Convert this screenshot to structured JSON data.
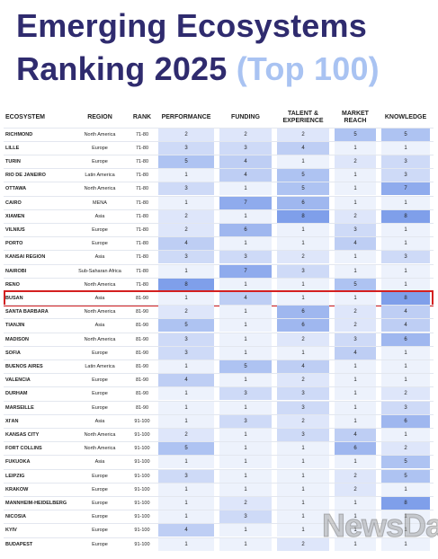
{
  "header": {
    "title_line1": "Emerging Ecosystems",
    "title_line2": "Ranking 2025",
    "title_tag": "(Top 100)"
  },
  "table": {
    "columns": [
      "ECOSYSTEM",
      "REGION",
      "RANK",
      "PERFORMANCE",
      "FUNDING",
      "TALENT & EXPERIENCE",
      "MARKET REACH",
      "KNOWLEDGE"
    ],
    "rows": [
      [
        "RICHMOND",
        "North America",
        "71-80",
        2,
        2,
        2,
        5,
        5
      ],
      [
        "LILLE",
        "Europe",
        "71-80",
        3,
        3,
        4,
        1,
        1
      ],
      [
        "TURIN",
        "Europe",
        "71-80",
        5,
        4,
        1,
        2,
        3
      ],
      [
        "RIO DE JANEIRO",
        "Latin America",
        "71-80",
        1,
        4,
        5,
        1,
        3
      ],
      [
        "OTTAWA",
        "North America",
        "71-80",
        3,
        1,
        5,
        1,
        7
      ],
      [
        "CAIRO",
        "MENA",
        "71-80",
        1,
        7,
        6,
        1,
        1
      ],
      [
        "XIAMEN",
        "Asia",
        "71-80",
        2,
        1,
        8,
        2,
        8
      ],
      [
        "VILNIUS",
        "Europe",
        "71-80",
        2,
        6,
        1,
        3,
        1
      ],
      [
        "PORTO",
        "Europe",
        "71-80",
        4,
        1,
        1,
        4,
        1
      ],
      [
        "KANSAI REGION",
        "Asia",
        "71-80",
        3,
        3,
        2,
        1,
        3
      ],
      [
        "NAIROBI",
        "Sub-Saharan Africa",
        "71-80",
        1,
        7,
        3,
        1,
        1
      ],
      [
        "RENO",
        "North America",
        "71-80",
        8,
        1,
        1,
        5,
        1
      ],
      [
        "BUSAN",
        "Asia",
        "81-90",
        1,
        4,
        1,
        1,
        8
      ],
      [
        "SANTA BARBARA",
        "North America",
        "81-90",
        2,
        1,
        6,
        2,
        4
      ],
      [
        "TIANJIN",
        "Asia",
        "81-90",
        5,
        1,
        6,
        2,
        4
      ],
      [
        "MADISON",
        "North America",
        "81-90",
        3,
        1,
        2,
        3,
        6
      ],
      [
        "SOFIA",
        "Europe",
        "81-90",
        3,
        1,
        1,
        4,
        1
      ],
      [
        "BUENOS AIRES",
        "Latin America",
        "81-90",
        1,
        5,
        4,
        1,
        1
      ],
      [
        "VALENCIA",
        "Europe",
        "81-90",
        4,
        1,
        2,
        1,
        1
      ],
      [
        "DURHAM",
        "Europe",
        "81-90",
        1,
        3,
        3,
        1,
        2
      ],
      [
        "MARSEILLE",
        "Europe",
        "81-90",
        1,
        1,
        3,
        1,
        3
      ],
      [
        "XI'AN",
        "Asia",
        "91-100",
        1,
        3,
        2,
        1,
        6
      ],
      [
        "KANSAS CITY",
        "North America",
        "91-100",
        2,
        1,
        3,
        4,
        1
      ],
      [
        "FORT COLLINS",
        "North America",
        "91-100",
        5,
        1,
        1,
        6,
        2
      ],
      [
        "FUKUOKA",
        "Asia",
        "91-100",
        1,
        1,
        1,
        1,
        5
      ],
      [
        "LEIPZIG",
        "Europe",
        "91-100",
        3,
        1,
        1,
        2,
        5
      ],
      [
        "KRAKOW",
        "Europe",
        "91-100",
        1,
        1,
        1,
        2,
        1
      ],
      [
        "MANNHEIM-HEIDELBERG",
        "Europe",
        "91-100",
        1,
        2,
        1,
        1,
        8
      ],
      [
        "NICOSIA",
        "Europe",
        "91-100",
        1,
        3,
        1,
        1,
        1
      ],
      [
        "KYIV",
        "Europe",
        "91-100",
        4,
        1,
        1,
        1,
        1
      ],
      [
        "BUDAPEST",
        "Europe",
        "91-100",
        1,
        1,
        2,
        1,
        1
      ]
    ]
  },
  "watermark": "NewsDa"
}
